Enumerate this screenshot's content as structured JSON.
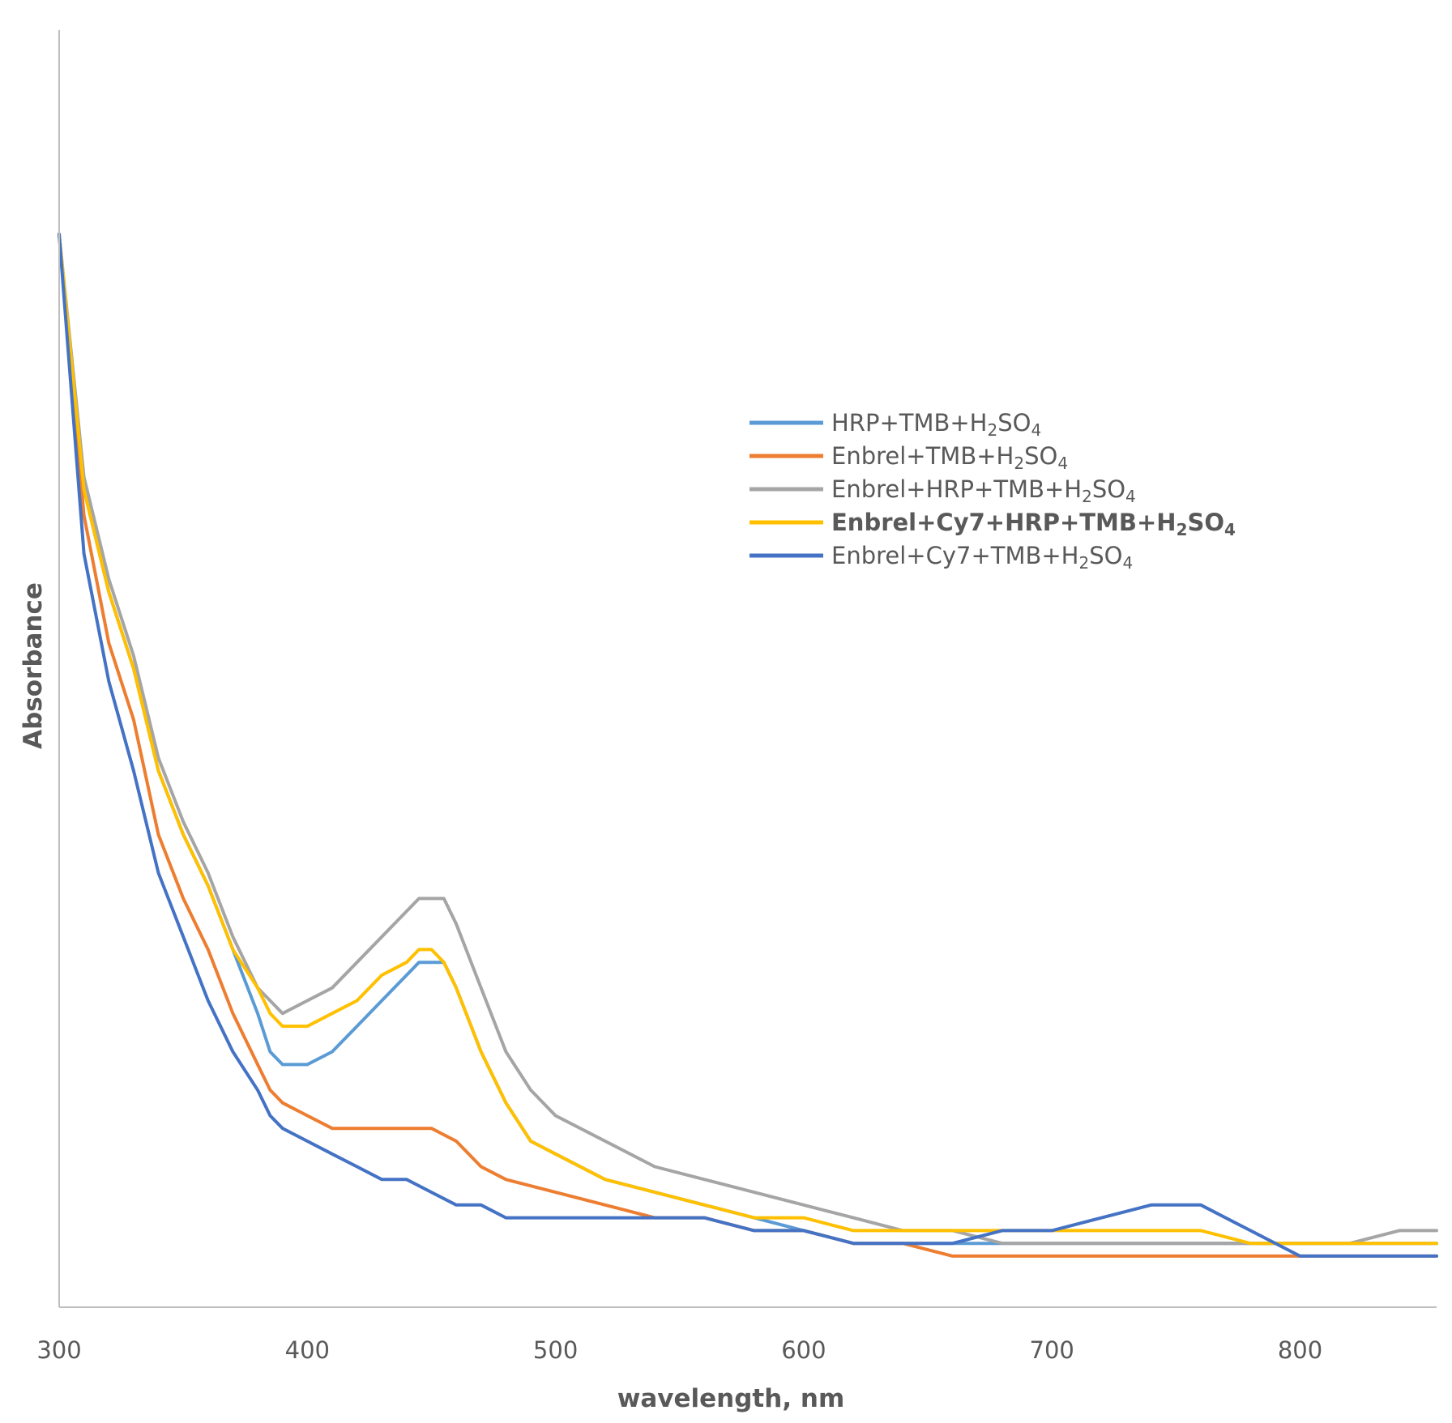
{
  "chart_data": {
    "type": "line",
    "title": "",
    "xlabel": "wavelength, nm",
    "ylabel": "Absorbance",
    "xlim": [
      300,
      855
    ],
    "ylim": [
      0,
      1.0
    ],
    "x_ticks": [
      "300",
      "400",
      "500",
      "600",
      "700",
      "800"
    ],
    "y_ticks_shown": false,
    "grid": false,
    "legend_position": "upper-right",
    "series": [
      {
        "name": "HRP+TMB+H2SO4",
        "name_parts": [
          "HRP+TMB+H",
          "2",
          "SO",
          "4"
        ],
        "color": "#5b9bd5",
        "bold": false,
        "x": [
          300,
          310,
          320,
          330,
          340,
          350,
          360,
          370,
          380,
          385,
          390,
          400,
          410,
          420,
          430,
          440,
          445,
          450,
          455,
          460,
          470,
          480,
          490,
          500,
          520,
          540,
          560,
          580,
          600,
          620,
          640,
          660,
          680,
          700,
          720,
          740,
          760,
          780,
          800,
          820,
          840,
          855
        ],
        "y": [
          0.84,
          0.64,
          0.56,
          0.5,
          0.42,
          0.37,
          0.33,
          0.28,
          0.23,
          0.2,
          0.19,
          0.19,
          0.2,
          0.22,
          0.24,
          0.26,
          0.27,
          0.27,
          0.27,
          0.25,
          0.2,
          0.16,
          0.13,
          0.12,
          0.1,
          0.09,
          0.08,
          0.07,
          0.06,
          0.05,
          0.05,
          0.05,
          0.05,
          0.05,
          0.05,
          0.05,
          0.05,
          0.05,
          0.05,
          0.05,
          0.05,
          0.05
        ]
      },
      {
        "name": "Enbrel+TMB+H2SO4",
        "name_parts": [
          "Enbrel+TMB+H",
          "2",
          "SO",
          "4"
        ],
        "color": "#ed7d31",
        "bold": false,
        "x": [
          300,
          310,
          320,
          330,
          340,
          350,
          360,
          370,
          380,
          385,
          390,
          400,
          410,
          420,
          430,
          440,
          450,
          460,
          470,
          480,
          500,
          520,
          540,
          560,
          580,
          600,
          620,
          640,
          660,
          680,
          700,
          720,
          740,
          760,
          780,
          800,
          820,
          840,
          855
        ],
        "y": [
          0.84,
          0.62,
          0.52,
          0.46,
          0.37,
          0.32,
          0.28,
          0.23,
          0.19,
          0.17,
          0.16,
          0.15,
          0.14,
          0.14,
          0.14,
          0.14,
          0.14,
          0.13,
          0.11,
          0.1,
          0.09,
          0.08,
          0.07,
          0.07,
          0.06,
          0.06,
          0.05,
          0.05,
          0.04,
          0.04,
          0.04,
          0.04,
          0.04,
          0.04,
          0.04,
          0.04,
          0.04,
          0.04,
          0.04
        ]
      },
      {
        "name": "Enbrel+HRP+TMB+H2SO4",
        "name_parts": [
          "Enbrel+HRP+TMB+H",
          "2",
          "SO",
          "4"
        ],
        "color": "#a5a5a5",
        "bold": false,
        "x": [
          300,
          310,
          320,
          330,
          340,
          350,
          360,
          370,
          380,
          385,
          390,
          400,
          410,
          420,
          430,
          440,
          445,
          450,
          455,
          460,
          470,
          480,
          490,
          500,
          520,
          540,
          560,
          580,
          600,
          620,
          640,
          660,
          680,
          700,
          720,
          740,
          760,
          780,
          800,
          820,
          840,
          855
        ],
        "y": [
          0.84,
          0.65,
          0.57,
          0.51,
          0.43,
          0.38,
          0.34,
          0.29,
          0.25,
          0.24,
          0.23,
          0.24,
          0.25,
          0.27,
          0.29,
          0.31,
          0.32,
          0.32,
          0.32,
          0.3,
          0.25,
          0.2,
          0.17,
          0.15,
          0.13,
          0.11,
          0.1,
          0.09,
          0.08,
          0.07,
          0.06,
          0.06,
          0.05,
          0.05,
          0.05,
          0.05,
          0.05,
          0.05,
          0.05,
          0.05,
          0.06,
          0.06
        ]
      },
      {
        "name": "Enbrel+Cy7+HRP+TMB+H2SO4",
        "name_parts": [
          "Enbrel+Cy7+HRP+TMB+H",
          "2",
          "SO",
          "4"
        ],
        "color": "#ffc000",
        "bold": true,
        "x": [
          300,
          310,
          320,
          330,
          340,
          350,
          360,
          370,
          380,
          385,
          390,
          400,
          410,
          420,
          430,
          440,
          445,
          450,
          455,
          460,
          470,
          480,
          490,
          500,
          520,
          540,
          560,
          580,
          600,
          620,
          640,
          660,
          680,
          700,
          720,
          740,
          760,
          780,
          800,
          820,
          840,
          855
        ],
        "y": [
          0.84,
          0.64,
          0.56,
          0.5,
          0.42,
          0.37,
          0.33,
          0.28,
          0.25,
          0.23,
          0.22,
          0.22,
          0.23,
          0.24,
          0.26,
          0.27,
          0.28,
          0.28,
          0.27,
          0.25,
          0.2,
          0.16,
          0.13,
          0.12,
          0.1,
          0.09,
          0.08,
          0.07,
          0.07,
          0.06,
          0.06,
          0.06,
          0.06,
          0.06,
          0.06,
          0.06,
          0.06,
          0.05,
          0.05,
          0.05,
          0.05,
          0.05
        ]
      },
      {
        "name": "Enbrel+Cy7+TMB+H2SO4",
        "name_parts": [
          "Enbrel+Cy7+TMB+H",
          "2",
          "SO",
          "4"
        ],
        "color": "#4472c4",
        "bold": false,
        "x": [
          300,
          310,
          320,
          330,
          340,
          350,
          360,
          370,
          380,
          385,
          390,
          400,
          410,
          420,
          430,
          440,
          450,
          460,
          470,
          480,
          500,
          520,
          540,
          560,
          580,
          600,
          620,
          640,
          660,
          680,
          700,
          720,
          740,
          760,
          780,
          800,
          820,
          840,
          855
        ],
        "y": [
          0.84,
          0.59,
          0.49,
          0.42,
          0.34,
          0.29,
          0.24,
          0.2,
          0.17,
          0.15,
          0.14,
          0.13,
          0.12,
          0.11,
          0.1,
          0.1,
          0.09,
          0.08,
          0.08,
          0.07,
          0.07,
          0.07,
          0.07,
          0.07,
          0.06,
          0.06,
          0.05,
          0.05,
          0.05,
          0.06,
          0.06,
          0.07,
          0.08,
          0.08,
          0.06,
          0.04,
          0.04,
          0.04,
          0.04
        ]
      }
    ]
  }
}
